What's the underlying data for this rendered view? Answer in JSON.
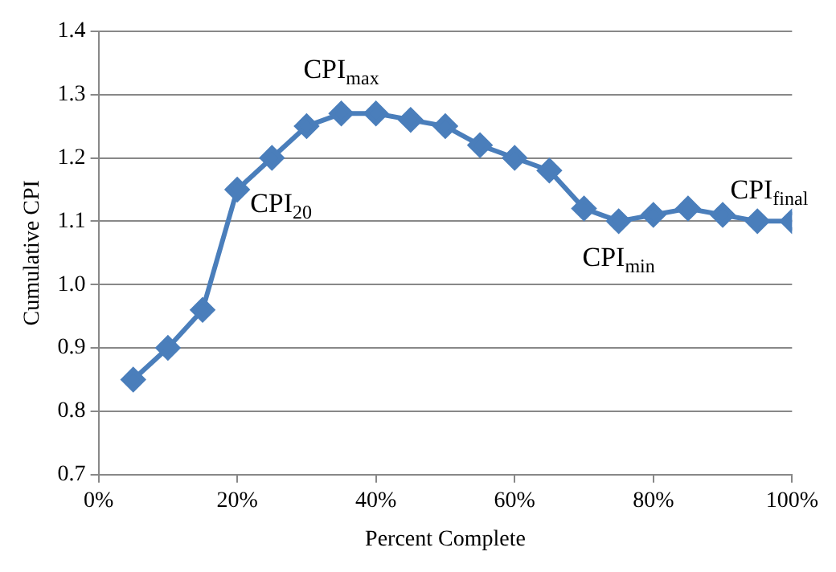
{
  "chart_data": {
    "type": "line",
    "xlabel": "Percent Complete",
    "ylabel": "Cumulative CPI",
    "x": [
      5,
      10,
      15,
      20,
      25,
      30,
      35,
      40,
      45,
      50,
      55,
      60,
      65,
      70,
      75,
      80,
      85,
      90,
      95,
      100
    ],
    "series": [
      {
        "color": "#4a7ebb",
        "values": [
          0.85,
          0.9,
          0.96,
          1.15,
          1.2,
          1.25,
          1.27,
          1.27,
          1.26,
          1.25,
          1.22,
          1.2,
          1.18,
          1.12,
          1.1,
          1.11,
          1.12,
          1.11,
          1.1,
          1.1
        ]
      }
    ],
    "xlim": [
      0,
      100
    ],
    "xticks": [
      {
        "value": 0,
        "label": "0%"
      },
      {
        "value": 20,
        "label": "20%"
      },
      {
        "value": 40,
        "label": "40%"
      },
      {
        "value": 60,
        "label": "60%"
      },
      {
        "value": 80,
        "label": "80%"
      },
      {
        "value": 100,
        "label": "100%"
      }
    ],
    "ylim": [
      0.7,
      1.4
    ],
    "yticks": [
      {
        "value": 0.7,
        "label": "0.7"
      },
      {
        "value": 0.8,
        "label": "0.8"
      },
      {
        "value": 0.9,
        "label": "0.9"
      },
      {
        "value": 1.0,
        "label": "1.0"
      },
      {
        "value": 1.1,
        "label": "1.1"
      },
      {
        "value": 1.2,
        "label": "1.2"
      },
      {
        "value": 1.3,
        "label": "1.3"
      },
      {
        "value": 1.4,
        "label": "1.4"
      }
    ],
    "grid": "y",
    "legend": false,
    "marker": "diamond",
    "line_style": "solid",
    "annotations": [
      {
        "text": "CPI$_{max}$",
        "x": 35,
        "y": 1.27
      },
      {
        "text": "CPI$_{20}$",
        "x": 20,
        "y": 1.15
      },
      {
        "text": "CPI$_{min}$",
        "x": 75,
        "y": 1.1
      },
      {
        "text": "CPI$_{final}$",
        "x": 100,
        "y": 1.1
      }
    ]
  }
}
